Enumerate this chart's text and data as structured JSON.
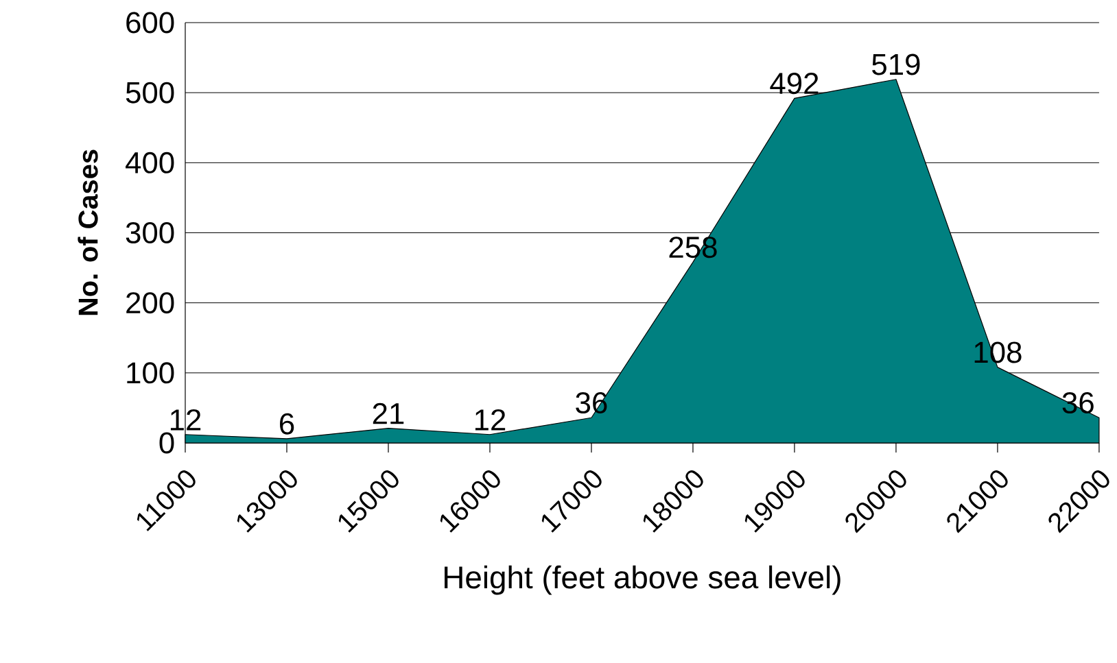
{
  "chart_data": {
    "type": "area",
    "xlabel": "Height (feet above sea level)",
    "ylabel": "No. of Cases",
    "categories": [
      "11000",
      "13000",
      "15000",
      "16000",
      "17000",
      "18000",
      "19000",
      "20000",
      "21000",
      "22000"
    ],
    "values": [
      12,
      6,
      21,
      12,
      36,
      258,
      492,
      519,
      108,
      36
    ],
    "color": "#008080",
    "ylim": [
      0,
      600
    ],
    "yticks": [
      0,
      100,
      200,
      300,
      400,
      500,
      600
    ],
    "grid": "y",
    "data_labels": true
  }
}
